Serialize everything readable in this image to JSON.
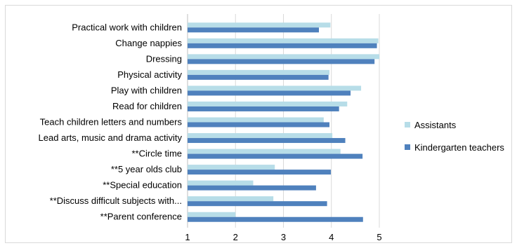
{
  "chart_data": {
    "type": "bar",
    "orientation": "horizontal",
    "categories": [
      "Practical work with children",
      "Change nappies",
      "Dressing",
      "Physical activity",
      "Play with children",
      "Read for children",
      "Teach children letters and numbers",
      "Lead arts, music and drama activity",
      "**Circle time",
      "**5 year olds club",
      "**Special education",
      "**Discuss difficult subjects with...",
      "**Parent conference"
    ],
    "series": [
      {
        "name": "Assistants",
        "color": "#b7dde8",
        "values": [
          3.98,
          4.98,
          5.0,
          3.96,
          4.62,
          4.33,
          3.84,
          4.02,
          4.19,
          2.82,
          2.37,
          2.79,
          2.0
        ]
      },
      {
        "name": "Kindergarten teachers",
        "color": "#4f81bd",
        "values": [
          3.74,
          4.95,
          4.9,
          3.94,
          4.4,
          4.16,
          3.96,
          4.29,
          4.65,
          3.99,
          3.68,
          3.91,
          4.66
        ]
      }
    ],
    "xlim": [
      1,
      5
    ],
    "xticks": [
      "1",
      "2",
      "3",
      "4",
      "5"
    ],
    "grid": "vertical",
    "legend_position": "right",
    "title": "",
    "xlabel": "",
    "ylabel": ""
  }
}
